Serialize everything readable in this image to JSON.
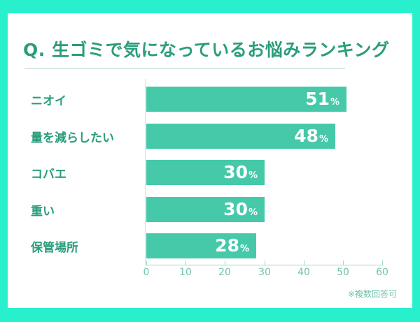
{
  "colors": {
    "frame": "#28f0cc",
    "title": "#2a9d7c",
    "bar": "#45c9a9",
    "axis_text": "#6fc2ac"
  },
  "title": "Q. 生ゴミで気になっているお悩みランキング",
  "note": "※複数回答可",
  "chart_data": {
    "type": "bar",
    "orientation": "horizontal",
    "title": "Q. 生ゴミで気になっているお悩みランキング",
    "categories": [
      "ニオイ",
      "量を減らしたい",
      "コバエ",
      "重い",
      "保管場所"
    ],
    "values": [
      51,
      48,
      30,
      30,
      28
    ],
    "value_labels": [
      "51",
      "48",
      "30",
      "30",
      "28"
    ],
    "unit": "%",
    "xlabel": "",
    "ylabel": "",
    "xlim": [
      0,
      60
    ],
    "x_ticks": [
      "0",
      "10",
      "20",
      "30",
      "40",
      "50",
      "60"
    ],
    "grid": false,
    "legend": null,
    "annotation": "※複数回答可"
  }
}
